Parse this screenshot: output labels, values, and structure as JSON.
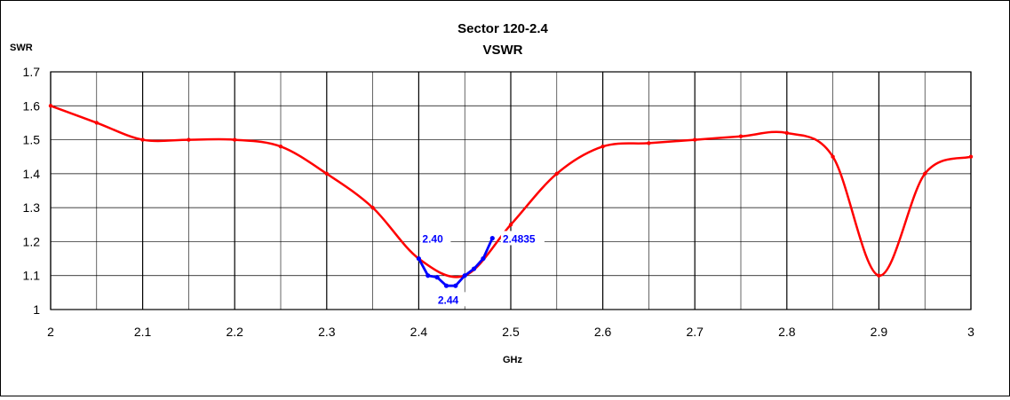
{
  "chart_data": {
    "type": "line",
    "title": "Sector 120-2.4",
    "subtitle": "VSWR",
    "xlabel": "GHz",
    "ylabel": "SWR",
    "xlim": [
      2,
      3
    ],
    "ylim": [
      1,
      1.7
    ],
    "x_ticks": [
      "2",
      "2.1",
      "2.2",
      "2.3",
      "2.4",
      "2.5",
      "2.6",
      "2.7",
      "2.8",
      "2.9",
      "3"
    ],
    "y_ticks": [
      "1",
      "1.1",
      "1.2",
      "1.3",
      "1.4",
      "1.5",
      "1.6",
      "1.7"
    ],
    "grid": true,
    "legend": false,
    "series": [
      {
        "color": "#ff0000",
        "x": [
          2.0,
          2.05,
          2.1,
          2.15,
          2.2,
          2.25,
          2.3,
          2.35,
          2.4,
          2.45,
          2.5,
          2.55,
          2.6,
          2.65,
          2.7,
          2.75,
          2.8,
          2.85,
          2.9,
          2.95,
          3.0
        ],
        "y": [
          1.6,
          1.55,
          1.5,
          1.5,
          1.5,
          1.48,
          1.4,
          1.3,
          1.15,
          1.1,
          1.25,
          1.4,
          1.48,
          1.49,
          1.5,
          1.51,
          1.52,
          1.45,
          1.1,
          1.4,
          1.45
        ]
      },
      {
        "color": "#0000ff",
        "x": [
          2.4,
          2.41,
          2.42,
          2.43,
          2.44,
          2.45,
          2.46,
          2.47,
          2.48
        ],
        "y": [
          1.15,
          1.1,
          1.095,
          1.07,
          1.07,
          1.1,
          1.12,
          1.15,
          1.21
        ]
      }
    ],
    "annotations": [
      {
        "text": "2.40",
        "x": 2.4,
        "y": 1.2
      },
      {
        "text": "2.44",
        "x": 2.44,
        "y": 1.02
      },
      {
        "text": "2.4835",
        "x": 2.4835,
        "y": 1.2
      }
    ]
  }
}
